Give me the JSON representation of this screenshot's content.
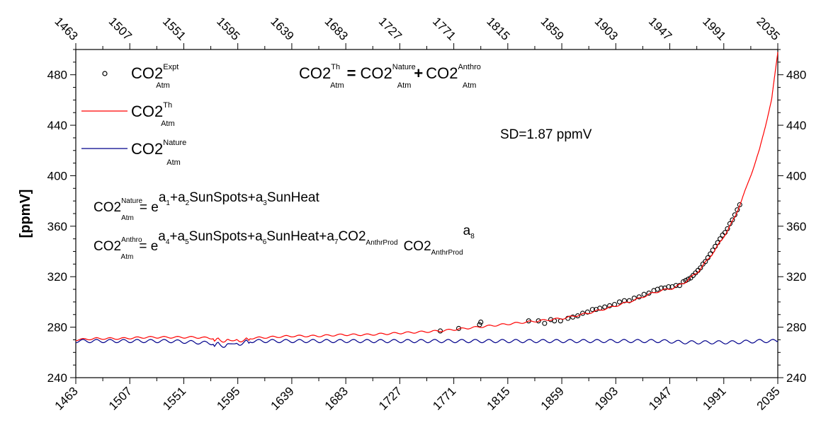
{
  "chart_data": {
    "type": "line",
    "ylabel": "[ppmV]",
    "xlim": [
      1463,
      2035
    ],
    "ylim": [
      240,
      500
    ],
    "x_ticks": [
      1463,
      1507,
      1551,
      1595,
      1639,
      1683,
      1727,
      1771,
      1815,
      1859,
      1903,
      1947,
      1991,
      2035
    ],
    "y_ticks": [
      240,
      280,
      320,
      360,
      400,
      440,
      480
    ],
    "x_tick_labels": [
      "1463",
      "1507",
      "1551",
      "1595",
      "1639",
      "1683",
      "1727",
      "1771",
      "1815",
      "1859",
      "1903",
      "1947",
      "1991",
      "2035"
    ],
    "y_tick_labels": [
      "240",
      "280",
      "320",
      "360",
      "400",
      "440",
      "480"
    ],
    "annotation_sd": "SD=1.87 ppmV",
    "legend": {
      "placement": "top-left",
      "expt": {
        "base": "CO2",
        "sup": "Expt",
        "sub": "Atm"
      },
      "theory": {
        "base": "CO2",
        "sup": "Th",
        "sub": "Atm"
      },
      "nature": {
        "base": "CO2",
        "sup": "Nature",
        "sub": "Atm"
      }
    },
    "equation_top": {
      "lhs_base": "CO2",
      "lhs_sup": "Th",
      "lhs_sub": "Atm",
      "eq": "=",
      "t1_base": "CO2",
      "t1_sup": "Nature",
      "t1_sub": "Atm",
      "plus": "+",
      "t2_base": "CO2",
      "t2_sup": "Anthro",
      "t2_sub": "Atm"
    },
    "equation_nature": {
      "lhs_base": "CO2",
      "lhs_sup": "Nature",
      "lhs_sub": "Atm",
      "eq": "= e",
      "exp_a1": "a",
      "exp_a1_sub": "1",
      "exp_plus1": "+a",
      "exp_a2_sub": "2",
      "exp_term2": "SunSpots+a",
      "exp_a3_sub": "3",
      "exp_term3": "SunHeat"
    },
    "equation_anthro": {
      "lhs_base": "CO2",
      "lhs_sup": "Anthro",
      "lhs_sub": "Atm",
      "eq": "= e",
      "exp_a4": "a",
      "exp_a4_sub": "4",
      "exp_plus": "+a",
      "exp_a5_sub": "5",
      "exp_term5": "SunSpots+a",
      "exp_a6_sub": "6",
      "exp_term6": "SunHeat+a",
      "exp_a7_sub": "7",
      "exp_term7": "CO2",
      "exp_term7_sub": "AnthrProd",
      "factor": "CO2",
      "factor_sub": "AnthrProd",
      "factor_exp": "a",
      "factor_exp_sub": "8"
    },
    "series": [
      {
        "name": "CO2 Expt Atm",
        "kind": "scatter",
        "color": "#000000",
        "x": [
          1760,
          1775,
          1792,
          1793,
          1832,
          1840,
          1845,
          1850,
          1853,
          1858,
          1864,
          1868,
          1872,
          1876,
          1880,
          1884,
          1887,
          1890,
          1894,
          1898,
          1902,
          1906,
          1910,
          1914,
          1918,
          1922,
          1926,
          1930,
          1934,
          1937,
          1940,
          1943,
          1946,
          1949,
          1952,
          1955,
          1958,
          1960,
          1962,
          1964,
          1966,
          1968,
          1970,
          1972,
          1974,
          1976,
          1978,
          1980,
          1982,
          1984,
          1986,
          1988,
          1990,
          1992,
          1994,
          1996,
          1998,
          2000,
          2002,
          2004
        ],
        "y": [
          277,
          279,
          282,
          284,
          285,
          285,
          283,
          286,
          285,
          285,
          287,
          288,
          289,
          291,
          292,
          294,
          294,
          295,
          296,
          297,
          298,
          300,
          301,
          301,
          303,
          304,
          306,
          307,
          309,
          310,
          311,
          311,
          312,
          312,
          313,
          313,
          316,
          317,
          318,
          319,
          321,
          323,
          325,
          327,
          330,
          332,
          335,
          338,
          341,
          344,
          347,
          350,
          353,
          355,
          358,
          362,
          365,
          369,
          373,
          377
        ]
      },
      {
        "name": "CO2 Th Atm",
        "kind": "line",
        "color": "#ff0000",
        "x": [
          1463,
          1480,
          1500,
          1520,
          1540,
          1560,
          1580,
          1600,
          1620,
          1640,
          1660,
          1680,
          1700,
          1720,
          1740,
          1760,
          1780,
          1800,
          1820,
          1840,
          1860,
          1880,
          1900,
          1910,
          1920,
          1930,
          1940,
          1950,
          1960,
          1970,
          1980,
          1990,
          2000,
          2010,
          2020,
          2030,
          2035
        ],
        "y": [
          270,
          271,
          271,
          272,
          272,
          272,
          271,
          271,
          272,
          273,
          273,
          274,
          274,
          275,
          276,
          277,
          279,
          281,
          283,
          285,
          287,
          291,
          296,
          299,
          302,
          306,
          309,
          311,
          316,
          324,
          336,
          350,
          367,
          392,
          420,
          460,
          498
        ]
      },
      {
        "name": "CO2 Nature Atm",
        "kind": "line",
        "color": "#00008b",
        "x": [
          1463,
          1480,
          1500,
          1520,
          1540,
          1560,
          1580,
          1600,
          1620,
          1640,
          1660,
          1680,
          1700,
          1720,
          1740,
          1760,
          1780,
          1800,
          1820,
          1840,
          1860,
          1880,
          1900,
          1920,
          1940,
          1960,
          1980,
          2000,
          2020,
          2035
        ],
        "y": [
          269,
          269,
          269,
          269,
          269,
          268,
          267,
          269,
          269,
          269,
          269,
          269,
          269,
          269,
          269,
          269,
          269,
          269,
          269,
          269,
          269,
          269,
          269,
          269,
          269,
          268,
          268,
          268,
          269,
          269
        ]
      }
    ]
  }
}
